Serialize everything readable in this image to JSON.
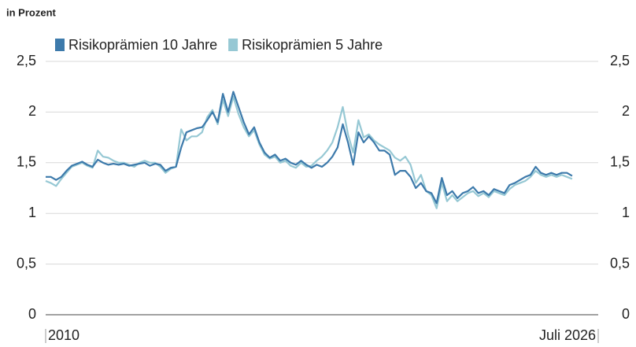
{
  "chart_data": {
    "type": "line",
    "subtitle": "in Prozent",
    "categories": [
      "2010",
      null,
      null,
      null,
      null,
      null,
      null,
      null,
      null,
      null,
      null,
      null,
      null,
      null,
      null,
      null,
      null,
      null,
      null,
      null,
      null,
      null,
      null,
      null,
      null,
      null,
      null,
      null,
      null,
      null,
      null,
      null,
      null,
      null,
      null,
      null,
      null,
      null,
      null,
      null,
      null,
      null,
      null,
      null,
      null,
      null,
      null,
      null,
      null,
      null,
      null,
      null,
      null,
      null,
      null,
      null,
      null,
      null,
      null,
      null,
      null,
      null,
      null,
      null,
      null,
      null,
      null,
      null,
      null,
      null,
      null,
      null,
      null,
      null,
      null,
      null,
      null,
      null,
      null,
      null,
      null,
      null,
      null,
      null,
      null,
      null,
      null,
      null,
      null,
      null,
      null,
      null,
      null,
      null,
      null,
      null,
      null,
      null,
      null,
      null,
      null,
      null,
      null,
      null,
      null,
      null,
      "Juli 2026"
    ],
    "series": [
      {
        "name": "Risikoprämien 10 Jahre",
        "color": "#3d7aab",
        "values": [
          1.36,
          1.36,
          1.33,
          1.36,
          1.42,
          1.47,
          1.49,
          1.51,
          1.48,
          1.46,
          1.53,
          1.5,
          1.48,
          1.49,
          1.48,
          1.49,
          1.47,
          1.48,
          1.49,
          1.5,
          1.47,
          1.49,
          1.48,
          1.42,
          1.45,
          1.46,
          1.65,
          1.8,
          1.82,
          1.84,
          1.85,
          1.92,
          2.0,
          1.9,
          2.18,
          2.0,
          2.2,
          2.05,
          1.9,
          1.78,
          1.85,
          1.7,
          1.6,
          1.55,
          1.58,
          1.52,
          1.54,
          1.5,
          1.48,
          1.52,
          1.48,
          1.45,
          1.48,
          1.46,
          1.5,
          1.56,
          1.65,
          1.88,
          1.7,
          1.48,
          1.8,
          1.7,
          1.76,
          1.7,
          1.62,
          1.62,
          1.58,
          1.38,
          1.42,
          1.42,
          1.36,
          1.25,
          1.3,
          1.22,
          1.2,
          1.1,
          1.35,
          1.18,
          1.22,
          1.15,
          1.2,
          1.22,
          1.26,
          1.2,
          1.22,
          1.18,
          1.24,
          1.22,
          1.2,
          1.28,
          1.3,
          1.33,
          1.36,
          1.38,
          1.46,
          1.4,
          1.38,
          1.4,
          1.38,
          1.4,
          1.4,
          1.37,
          null,
          null,
          null,
          null,
          null
        ]
      },
      {
        "name": "Risikoprämien 5 Jahre",
        "color": "#96c8d4",
        "values": [
          1.32,
          1.3,
          1.27,
          1.34,
          1.4,
          1.46,
          1.48,
          1.5,
          1.47,
          1.45,
          1.62,
          1.56,
          1.55,
          1.52,
          1.5,
          1.5,
          1.48,
          1.46,
          1.5,
          1.52,
          1.5,
          1.5,
          1.46,
          1.4,
          1.44,
          1.46,
          1.83,
          1.72,
          1.76,
          1.76,
          1.8,
          1.95,
          2.02,
          1.88,
          2.12,
          1.96,
          2.15,
          1.98,
          1.85,
          1.76,
          1.82,
          1.68,
          1.58,
          1.54,
          1.56,
          1.5,
          1.52,
          1.47,
          1.45,
          1.5,
          1.46,
          1.47,
          1.52,
          1.56,
          1.62,
          1.7,
          1.85,
          2.05,
          1.78,
          1.6,
          1.92,
          1.75,
          1.78,
          1.72,
          1.68,
          1.65,
          1.62,
          1.55,
          1.52,
          1.56,
          1.48,
          1.3,
          1.38,
          1.22,
          1.18,
          1.05,
          1.3,
          1.12,
          1.18,
          1.12,
          1.16,
          1.2,
          1.22,
          1.17,
          1.2,
          1.16,
          1.22,
          1.2,
          1.18,
          1.24,
          1.28,
          1.3,
          1.32,
          1.36,
          1.42,
          1.38,
          1.36,
          1.38,
          1.36,
          1.38,
          1.36,
          1.34,
          null,
          null,
          null,
          null,
          null
        ]
      }
    ],
    "ylim": [
      0,
      2.5
    ],
    "yticks": [
      0,
      {
        "value": 0.5,
        "label": "0,5"
      },
      1,
      {
        "value": 1.5,
        "label": "1,5"
      },
      2,
      {
        "value": 2.5,
        "label": "2,5"
      }
    ],
    "y2lim": [
      0,
      2.5
    ],
    "y2ticks": [
      0,
      {
        "value": 0.5,
        "label": "0,5"
      },
      1,
      {
        "value": 1.5,
        "label": "1,5"
      },
      2,
      {
        "value": 2.5,
        "label": "2,5"
      }
    ],
    "grid": true,
    "legend": "top-left"
  }
}
